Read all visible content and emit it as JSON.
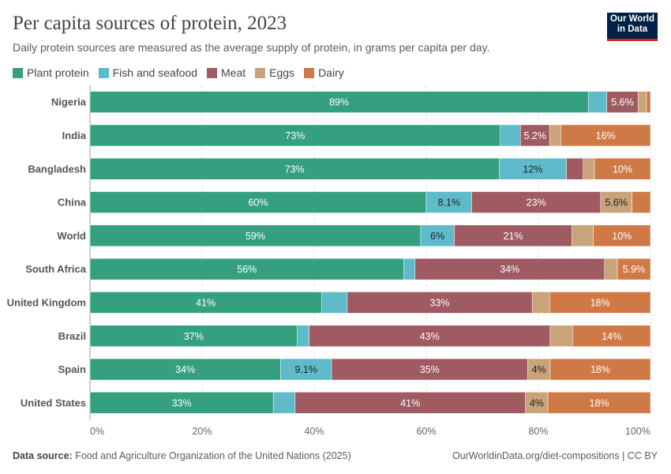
{
  "title": "Per capita sources of protein, 2023",
  "subtitle": "Daily protein sources are measured as the average supply of protein, in grams per capita per day.",
  "logo": "Our World in Data",
  "footer": {
    "source_label": "Data source:",
    "source": "Food and Agriculture Organization of the United Nations (2025)",
    "link": "OurWorldinData.org/diet-compositions | CC BY"
  },
  "chart_data": {
    "type": "bar",
    "stacked": true,
    "orientation": "horizontal",
    "unit": "%",
    "xlim": [
      0,
      100
    ],
    "x_ticks": [
      "0%",
      "20%",
      "40%",
      "60%",
      "80%",
      "100%"
    ],
    "grid": true,
    "legend_position": "top-left",
    "categories": [
      "Nigeria",
      "India",
      "Bangladesh",
      "China",
      "World",
      "South Africa",
      "United Kingdom",
      "Brazil",
      "Spain",
      "United States"
    ],
    "series": [
      {
        "name": "Plant protein",
        "color": "#34a080",
        "text_color": "#ffffff",
        "values": [
          88.9,
          73.2,
          73.0,
          60.0,
          59.0,
          56.0,
          41.3,
          37.0,
          34.0,
          32.7
        ],
        "labels": [
          "89%",
          "73%",
          "73%",
          "60%",
          "59%",
          "56%",
          "41%",
          "37%",
          "34%",
          "33%"
        ]
      },
      {
        "name": "Fish and seafood",
        "color": "#5fbbca",
        "text_color": "#222222",
        "values": [
          3.3,
          3.6,
          12.0,
          8.1,
          6.0,
          2.0,
          4.6,
          2.1,
          9.1,
          3.9
        ],
        "labels": [
          null,
          null,
          "12%",
          "8.1%",
          "6%",
          null,
          null,
          null,
          "9.1%",
          null
        ]
      },
      {
        "name": "Meat",
        "color": "#a05a62",
        "text_color": "#ffffff",
        "values": [
          5.6,
          5.2,
          3.0,
          23.0,
          21.0,
          33.8,
          33.0,
          43.0,
          35.0,
          41.1
        ],
        "labels": [
          "5.6%",
          "5.2%",
          null,
          "23%",
          "21%",
          "34%",
          "33%",
          "43%",
          "35%",
          "41%"
        ]
      },
      {
        "name": "Eggs",
        "color": "#c9a47a",
        "text_color": "#222222",
        "values": [
          1.5,
          2.0,
          2.0,
          5.6,
          3.8,
          2.3,
          3.1,
          4.0,
          4.0,
          4.0
        ],
        "labels": [
          null,
          null,
          null,
          "5.6%",
          null,
          null,
          null,
          null,
          "4%",
          "4%"
        ]
      },
      {
        "name": "Dairy",
        "color": "#cf7a46",
        "text_color": "#ffffff",
        "values": [
          0.7,
          16.0,
          10.0,
          3.3,
          10.2,
          5.9,
          18.0,
          13.9,
          17.9,
          18.3
        ],
        "labels": [
          null,
          "16%",
          "10%",
          null,
          "10%",
          "5.9%",
          "18%",
          "14%",
          "18%",
          "18%"
        ]
      }
    ]
  }
}
